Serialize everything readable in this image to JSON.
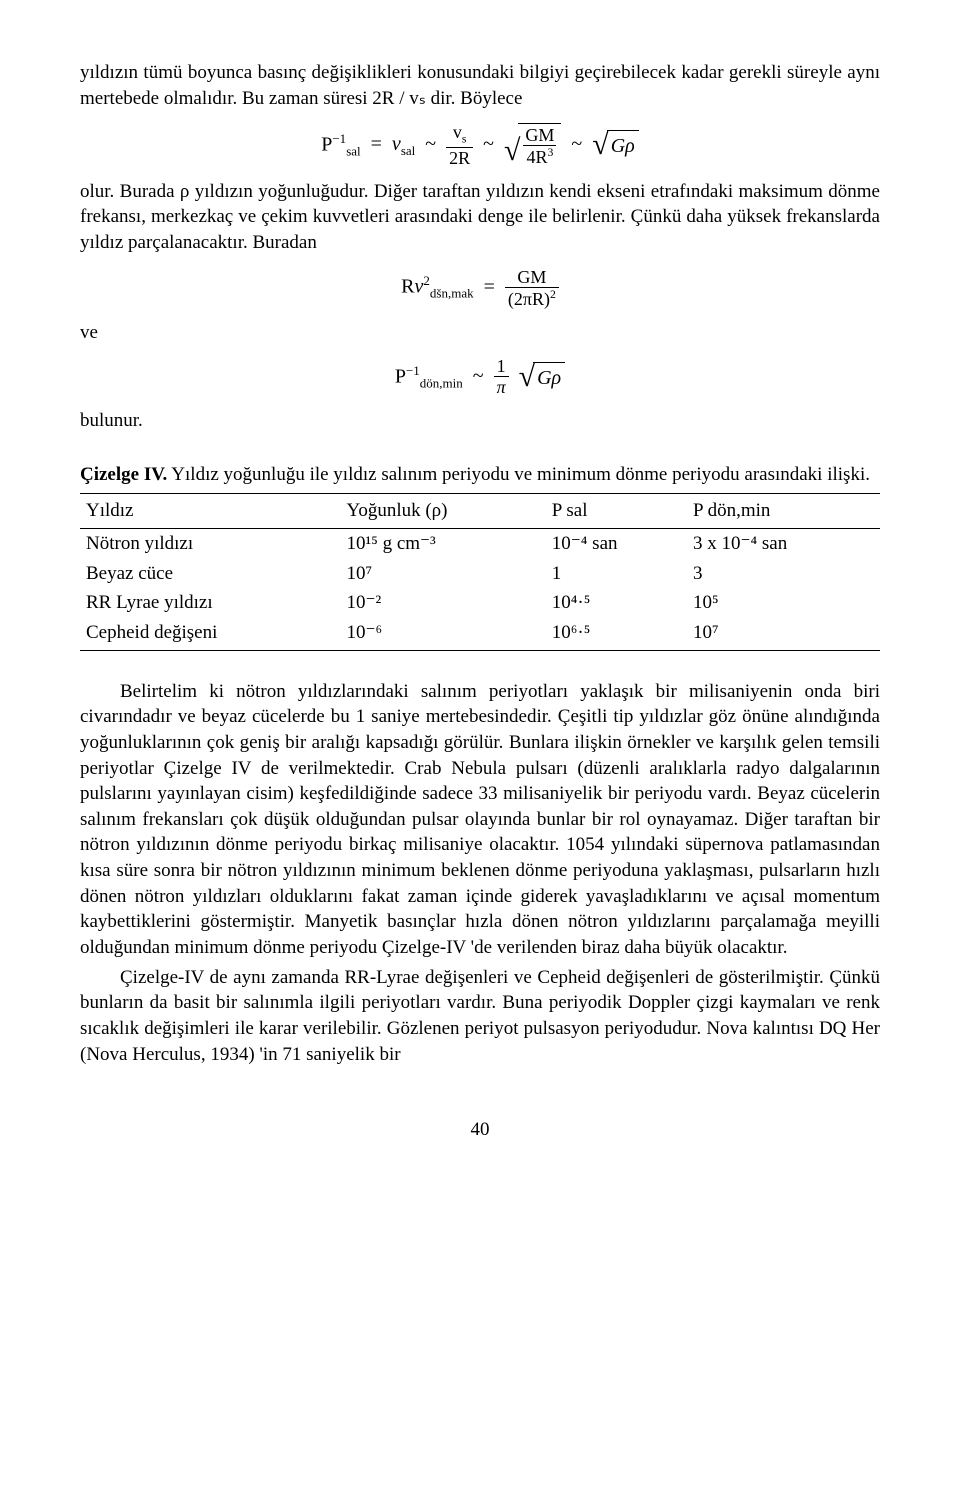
{
  "para1": "yıldızın tümü boyunca basınç değişiklikleri konusundaki bilgiyi geçirebilecek kadar gerekli süreyle aynı mertebede olmalıdır. Bu zaman süresi 2R / vₛ dir. Böylece",
  "eq1": {
    "lhs_base": "P",
    "lhs_sub": "sal",
    "lhs_sup": "−1",
    "rhs1_sym": "ν",
    "rhs1_sub": "sal",
    "frac1_num": "v",
    "frac1_num_sub": "s",
    "frac1_den": "2R",
    "frac2_num": "GM",
    "frac2_den": "4R",
    "frac2_den_sup": "3",
    "rhs_last": "Gρ",
    "tilde": "~",
    "eq": "="
  },
  "para2": "olur. Burada ρ yıldızın yoğunluğudur. Diğer taraftan yıldızın kendi ekseni etrafındaki maksimum dönme frekansı, merkezkaç ve çekim kuvvetleri arasındaki denge ile belirlenir. Çünkü daha yüksek frekanslarda yıldız parçalanacaktır. Buradan",
  "eq2": {
    "lhs": "R",
    "nu": "ν",
    "nu_sup": "2",
    "nu_sub": "dšn,mak",
    "eq": "=",
    "num": "GM",
    "den": "(2πR)",
    "den_sup": "2"
  },
  "connector_ve": "ve",
  "eq3": {
    "lhs_base": "P",
    "lhs_sup": "−1",
    "lhs_sub": "dön,min",
    "tilde": "~",
    "frac_num": "1",
    "frac_den": "π",
    "sqrt": "Gρ"
  },
  "connector_bulunur": "bulunur.",
  "table_title_prefix": "Çizelge IV.",
  "table_title_rest": " Yıldız yoğunluğu ile yıldız salınım periyodu ve minimum dönme periyodu arasındaki ilişki.",
  "table": {
    "columns": [
      "Yıldız",
      "Yoğunluk (ρ)",
      "P sal",
      "P dön,min"
    ],
    "rows": [
      [
        "Nötron yıldızı",
        "10¹⁵ g cm⁻³",
        "10⁻⁴ san",
        "3 x 10⁻⁴ san"
      ],
      [
        "Beyaz cüce",
        "10⁷",
        "1",
        "3"
      ],
      [
        "RR Lyrae yıldızı",
        "10⁻²",
        "10⁴·⁵",
        "10⁵"
      ],
      [
        "Cepheid değişeni",
        "10⁻⁶",
        "10⁶·⁵",
        "10⁷"
      ]
    ]
  },
  "para3": "Belirtelim ki nötron yıldızlarındaki salınım periyotları yaklaşık bir milisaniyenin onda biri civarındadır ve beyaz cücelerde bu 1 saniye mertebesindedir. Çeşitli tip yıldızlar göz önüne alındığında yoğunluklarının çok geniş bir aralığı kapsadığı görülür. Bunlara ilişkin örnekler ve karşılık gelen temsili periyotlar Çizelge IV de verilmektedir. Crab Nebula pulsarı (düzenli aralıklarla radyo dalgalarının pulslarını yayınlayan cisim) keşfedildiğinde sadece 33 milisaniyelik bir periyodu vardı. Beyaz cücelerin salınım frekansları çok düşük olduğundan pulsar olayında bunlar bir rol oynayamaz.  Diğer taraftan bir nötron yıldızının dönme periyodu birkaç milisaniye olacaktır. 1054 yılındaki süpernova patlamasından kısa süre sonra bir nötron yıldızının minimum beklenen dönme periyoduna yaklaşması, pulsarların hızlı dönen nötron yıldızları olduklarını fakat zaman içinde giderek yavaşladıklarını ve açısal momentum kaybettiklerini göstermiştir. Manyetik basınçlar hızla dönen nötron yıldızlarını parçalamağa meyilli olduğundan minimum dönme periyodu Çizelge-IV 'de verilenden biraz daha büyük olacaktır.",
  "para4": "Çizelge-IV de aynı zamanda RR-Lyrae değişenleri ve Cepheid değişenleri de gösterilmiştir. Çünkü bunların da basit bir salınımla ilgili periyotları vardır. Buna periyodik Doppler çizgi kaymaları ve renk sıcaklık değişimleri ile karar verilebilir. Gözlenen periyot pulsasyon periyodudur. Nova kalıntısı DQ Her (Nova Herculus, 1934) 'in 71 saniyelik bir",
  "page_number": "40"
}
